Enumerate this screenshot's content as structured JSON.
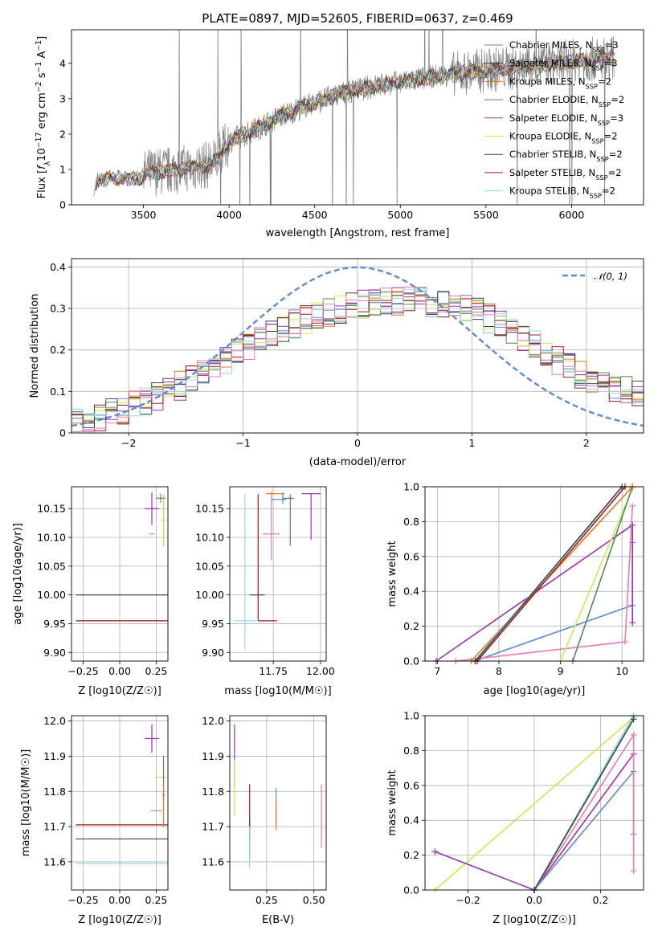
{
  "chart_data": [
    {
      "id": "spectrum",
      "type": "line",
      "title": "PLATE=0897, MJD=52605, FIBERID=0637, z=0.469",
      "xlabel": "wavelength [Angstrom, rest frame]",
      "ylabel": "Flux [f_λ 10^-17 erg cm^-2 s^-1 A^-1]",
      "xlim": [
        3080,
        6420
      ],
      "ylim": [
        0,
        4.95
      ],
      "xticks": [
        3500,
        4000,
        4500,
        5000,
        5500,
        6000
      ],
      "yticks": [
        0,
        1,
        2,
        3,
        4
      ],
      "data_color": "#808080",
      "data_trend": {
        "x": [
          3210,
          3230,
          3300,
          3480,
          3520,
          3700,
          3900,
          3960,
          4000,
          4100,
          4300,
          4500,
          4700,
          4900,
          5100,
          5300,
          5500,
          5700,
          5900,
          6100,
          6250
        ],
        "y": [
          0.3,
          0.7,
          0.75,
          0.75,
          0.9,
          1.0,
          1.15,
          1.5,
          1.8,
          2.0,
          2.5,
          2.9,
          3.2,
          3.4,
          3.55,
          3.7,
          3.8,
          3.9,
          4.0,
          4.1,
          4.15
        ]
      },
      "grid": false,
      "legend_position": "top-right",
      "series": [
        {
          "name": "Chabrier MILES, N_SSP=3",
          "color": "#5b8ad8"
        },
        {
          "name": "Salpeter MILES, N_SSP=3",
          "color": "#3a3a3a"
        },
        {
          "name": "Kroupa MILES, N_SSP=2",
          "color": "#e07b20"
        },
        {
          "name": "Chabrier ELODIE, N_SSP=2",
          "color": "#4f8a55"
        },
        {
          "name": "Salpeter ELODIE, N_SSP=3",
          "color": "#9b30b0"
        },
        {
          "name": "Kroupa ELODIE, N_SSP=2",
          "color": "#cde84c"
        },
        {
          "name": "Chabrier STELIB, N_SSP=2",
          "color": "#444444"
        },
        {
          "name": "Salpeter STELIB, N_SSP=2",
          "color": "#a01818"
        },
        {
          "name": "Kroupa STELIB, N_SSP=2",
          "color": "#88dde8"
        }
      ]
    },
    {
      "id": "residuals",
      "type": "line",
      "xlabel": "(data-model)/error",
      "ylabel": "Normed distribution",
      "xlim": [
        -2.5,
        2.5
      ],
      "ylim": [
        0,
        0.42
      ],
      "xticks": [
        -2,
        -1,
        0,
        1,
        2
      ],
      "yticks": [
        0.0,
        0.1,
        0.2,
        0.3,
        0.4
      ],
      "grid": true,
      "legend": "𝒩(0, 1)",
      "legend_position": "top-right",
      "reference_curve": {
        "name": "N(0,1)",
        "mu": 0,
        "sigma": 1,
        "color": "#5b8ad8"
      },
      "histogram_bin_width": 0.1,
      "histogram_envelope": {
        "x": [
          -2.5,
          -2.0,
          -1.5,
          -1.0,
          -0.5,
          0.0,
          0.5,
          1.0,
          1.5,
          2.0,
          2.5
        ],
        "y": [
          0.02,
          0.06,
          0.12,
          0.2,
          0.27,
          0.31,
          0.32,
          0.3,
          0.22,
          0.13,
          0.09
        ]
      },
      "histogram_colors": [
        "#5b8ad8",
        "#3a3a3a",
        "#e07b20",
        "#4f8a55",
        "#9b30b0",
        "#cde84c",
        "#444444",
        "#a01818",
        "#88dde8",
        "#e87ab0"
      ]
    },
    {
      "id": "age_vs_Z",
      "type": "scatter",
      "xlabel": "Z [log10(Z/Z☉)]",
      "ylabel": "age  [log10(age/yr)]",
      "xlim": [
        -0.33,
        0.33
      ],
      "ylim": [
        9.885,
        10.188
      ],
      "xticks": [
        -0.25,
        0.0,
        0.25
      ],
      "xtick_labels": [
        "−0.25",
        "0.00",
        "0.25"
      ],
      "yticks": [
        9.9,
        9.95,
        10.0,
        10.05,
        10.1,
        10.15
      ],
      "ytick_labels": [
        "9.90",
        "9.95",
        "10.00",
        "10.05",
        "10.10",
        "10.15"
      ],
      "grid": true,
      "points": [
        {
          "x": 0.3,
          "y": 10.0,
          "xerr": 0.6,
          "yerr": 0.0,
          "color": "#444444"
        },
        {
          "x": 0.3,
          "y": 9.955,
          "xerr": 0.6,
          "yerr": 0.0,
          "color": "#88dde8"
        },
        {
          "x": 0.3,
          "y": 9.955,
          "xerr": 0.6,
          "yerr": 0.0,
          "color": "#a01818"
        },
        {
          "x": 0.3,
          "y": 10.13,
          "xerr": 0.0,
          "yerr": 0.045,
          "color": "#4f8a55"
        },
        {
          "x": 0.3,
          "y": 10.13,
          "xerr": 0.02,
          "yerr": 0.045,
          "color": "#cde84c"
        },
        {
          "x": 0.22,
          "y": 10.15,
          "xerr": 0.05,
          "yerr": 0.028,
          "color": "#9b30b0"
        },
        {
          "x": 0.22,
          "y": 10.106,
          "xerr": 0.02,
          "yerr": 0.0,
          "color": "#e87ab0"
        },
        {
          "x": 0.28,
          "y": 10.168,
          "xerr": 0.03,
          "yerr": 0.008,
          "color": "#e07b20"
        },
        {
          "x": 0.28,
          "y": 10.168,
          "xerr": 0.03,
          "yerr": 0.004,
          "color": "#5b8ad8"
        }
      ]
    },
    {
      "id": "age_vs_mass",
      "type": "scatter",
      "xlabel": "mass [log10(M/M☉)]",
      "ylabel": "",
      "xlim": [
        11.52,
        12.03
      ],
      "ylim": [
        9.885,
        10.188
      ],
      "xticks": [
        11.75,
        12.0
      ],
      "xtick_labels": [
        "11.75",
        "12.00"
      ],
      "yticks": [
        9.9,
        9.95,
        10.0,
        10.05,
        10.1,
        10.15
      ],
      "ytick_labels": [
        "9.90",
        "9.95",
        "10.00",
        "10.05",
        "10.10",
        "10.15"
      ],
      "grid": true,
      "points": [
        {
          "x": 11.665,
          "y": 10.0,
          "xerr": 0.04,
          "yerr": 0.0,
          "color": "#444444"
        },
        {
          "x": 11.6,
          "y": 10.04,
          "xerr": 0.0,
          "yerr": 0.135,
          "color": "#88dde8"
        },
        {
          "x": 11.6,
          "y": 9.955,
          "xerr": 0.06,
          "yerr": 0.0,
          "color": "#88dde8"
        },
        {
          "x": 11.67,
          "y": 10.065,
          "xerr": 0.0,
          "yerr": 0.11,
          "color": "#a01818"
        },
        {
          "x": 11.72,
          "y": 9.955,
          "xerr": 0.05,
          "yerr": 0.0,
          "color": "#a01818"
        },
        {
          "x": 11.74,
          "y": 10.106,
          "xerr": 0.045,
          "yerr": 0.0,
          "color": "#e87ab0"
        },
        {
          "x": 11.74,
          "y": 10.12,
          "xerr": 0.0,
          "yerr": 0.06,
          "color": "#e87ab0"
        },
        {
          "x": 11.83,
          "y": 10.168,
          "xerr": 0.03,
          "yerr": 0.0,
          "color": "#4f8a55"
        },
        {
          "x": 11.84,
          "y": 10.13,
          "xerr": 0.0,
          "yerr": 0.045,
          "color": "#4f8a55"
        },
        {
          "x": 11.95,
          "y": 10.176,
          "xerr": 0.05,
          "yerr": 0.0,
          "color": "#9b30b0"
        },
        {
          "x": 11.95,
          "y": 10.136,
          "xerr": 0.0,
          "yerr": 0.04,
          "color": "#9b30b0"
        },
        {
          "x": 11.76,
          "y": 10.176,
          "xerr": 0.05,
          "yerr": 0.0,
          "color": "#e07b20"
        },
        {
          "x": 11.78,
          "y": 10.166,
          "xerr": 0.04,
          "yerr": 0.0,
          "color": "#5b8ad8"
        },
        {
          "x": 11.8,
          "y": 10.168,
          "xerr": 0.0,
          "yerr": 0.01,
          "color": "#5b8ad8"
        }
      ]
    },
    {
      "id": "weight_vs_age",
      "type": "line",
      "xlabel": "age  [log10(age/yr)]",
      "ylabel": "mass weight",
      "xlim": [
        6.8,
        10.35
      ],
      "ylim": [
        0,
        1.0
      ],
      "xticks": [
        7,
        8,
        9,
        10
      ],
      "yticks": [
        0.0,
        0.2,
        0.4,
        0.6,
        0.8,
        1.0
      ],
      "ytick_labels": [
        "0.0",
        "0.2",
        "0.4",
        "0.6",
        "0.8",
        "1.0"
      ],
      "grid": true,
      "series": [
        {
          "color": "#5b8ad8",
          "x": [
            7.6,
            10.17,
            10.17
          ],
          "y": [
            0.0,
            0.32,
            0.68
          ]
        },
        {
          "color": "#9b30b0",
          "x": [
            6.98,
            10.17,
            10.17
          ],
          "y": [
            0.0,
            0.78,
            0.22
          ]
        },
        {
          "color": "#e87ab0",
          "x": [
            7.3,
            10.05,
            10.17
          ],
          "y": [
            0.0,
            0.11,
            0.89
          ]
        },
        {
          "color": "#cde84c",
          "x": [
            9.0,
            10.17
          ],
          "y": [
            0.0,
            0.99
          ]
        },
        {
          "color": "#4f8a55",
          "x": [
            9.2,
            10.17
          ],
          "y": [
            0.0,
            1.0
          ]
        },
        {
          "color": "#e07b20",
          "x": [
            7.55,
            10.17
          ],
          "y": [
            0.0,
            1.0
          ]
        },
        {
          "color": "#88dde8",
          "x": [
            7.6,
            10.0
          ],
          "y": [
            0.0,
            1.0
          ]
        },
        {
          "color": "#444444",
          "x": [
            7.62,
            10.0
          ],
          "y": [
            0.0,
            1.0
          ]
        },
        {
          "color": "#a01818",
          "x": [
            7.65,
            10.05
          ],
          "y": [
            0.0,
            1.0
          ]
        }
      ]
    },
    {
      "id": "mass_vs_Z",
      "type": "scatter",
      "xlabel": "Z [log10(Z/Z☉)]",
      "ylabel": "mass [log10(M/M☉)]",
      "xlim": [
        -0.33,
        0.33
      ],
      "ylim": [
        11.52,
        12.015
      ],
      "xticks": [
        -0.25,
        0.0,
        0.25
      ],
      "xtick_labels": [
        "−0.25",
        "0.00",
        "0.25"
      ],
      "yticks": [
        11.6,
        11.7,
        11.8,
        11.9,
        12.0
      ],
      "ytick_labels": [
        "11.6",
        "11.7",
        "11.8",
        "11.9",
        "12.0"
      ],
      "grid": true,
      "points": [
        {
          "x": 0.3,
          "y": 11.705,
          "xerr": 0.6,
          "yerr": 0.0,
          "color": "#a01818"
        },
        {
          "x": 0.3,
          "y": 11.665,
          "xerr": 0.6,
          "yerr": 0.0,
          "color": "#444444"
        },
        {
          "x": 0.3,
          "y": 11.595,
          "xerr": 0.6,
          "yerr": 0.0,
          "color": "#88dde8"
        },
        {
          "x": 0.22,
          "y": 11.95,
          "xerr": 0.05,
          "yerr": 0.04,
          "color": "#9b30b0"
        },
        {
          "x": 0.28,
          "y": 11.84,
          "xerr": 0.04,
          "yerr": 0.0,
          "color": "#cde84c"
        },
        {
          "x": 0.3,
          "y": 11.84,
          "xerr": 0.0,
          "yerr": 0.06,
          "color": "#4f8a55"
        },
        {
          "x": 0.25,
          "y": 11.745,
          "xerr": 0.04,
          "yerr": 0.0,
          "color": "#e87ab0"
        },
        {
          "x": 0.3,
          "y": 11.79,
          "xerr": 0.01,
          "yerr": 0.015,
          "color": "#5b8ad8"
        },
        {
          "x": 0.3,
          "y": 11.76,
          "xerr": 0.0,
          "yerr": 0.06,
          "color": "#e07b20"
        }
      ]
    },
    {
      "id": "mass_vs_ebv",
      "type": "scatter",
      "xlabel": "E(B-V)",
      "ylabel": "",
      "xlim": [
        0.055,
        0.565
      ],
      "ylim": [
        11.52,
        12.015
      ],
      "xticks": [
        0.25,
        0.5
      ],
      "xtick_labels": [
        "0.25",
        "0.50"
      ],
      "yticks": [
        11.6,
        11.7,
        11.8,
        11.9,
        12.0
      ],
      "ytick_labels": [
        "11.6",
        "11.7",
        "11.8",
        "11.9",
        "12.0"
      ],
      "grid": true,
      "points": [
        {
          "x": 0.08,
          "y": 11.9,
          "yerr": 0.09,
          "color": "#9b30b0"
        },
        {
          "x": 0.08,
          "y": 11.81,
          "yerr": 0.08,
          "color": "#cde84c"
        },
        {
          "x": 0.16,
          "y": 11.74,
          "yerr": 0.08,
          "color": "#a01818"
        },
        {
          "x": 0.16,
          "y": 11.665,
          "yerr": 0.06,
          "color": "#444444"
        },
        {
          "x": 0.16,
          "y": 11.64,
          "yerr": 0.06,
          "color": "#88dde8"
        },
        {
          "x": 0.3,
          "y": 11.755,
          "yerr": 0.055,
          "color": "#5b8ad8"
        },
        {
          "x": 0.3,
          "y": 11.735,
          "yerr": 0.045,
          "color": "#e07b20"
        },
        {
          "x": 0.54,
          "y": 11.73,
          "yerr": 0.09,
          "color": "#e87ab0"
        }
      ]
    },
    {
      "id": "weight_vs_Z",
      "type": "line",
      "xlabel": "Z [log10(Z/Z☉)]",
      "ylabel": "mass weight",
      "xlim": [
        -0.33,
        0.33
      ],
      "ylim": [
        0,
        1.0
      ],
      "xticks": [
        -0.2,
        0.0,
        0.2
      ],
      "xtick_labels": [
        "−0.2",
        "0.0",
        "0.2"
      ],
      "yticks": [
        0.0,
        0.2,
        0.4,
        0.6,
        0.8,
        1.0
      ],
      "ytick_labels": [
        "0.0",
        "0.2",
        "0.4",
        "0.6",
        "0.8",
        "1.0"
      ],
      "grid": true,
      "series": [
        {
          "color": "#cde84c",
          "x": [
            -0.3,
            0.3
          ],
          "y": [
            0.0,
            0.99
          ]
        },
        {
          "color": "#9b30b0",
          "x": [
            -0.3,
            0.0,
            0.3
          ],
          "y": [
            0.22,
            0.0,
            0.78
          ]
        },
        {
          "color": "#5b8ad8",
          "x": [
            0.0,
            0.3,
            0.3
          ],
          "y": [
            0.0,
            0.68,
            0.32
          ]
        },
        {
          "color": "#e87ab0",
          "x": [
            0.0,
            0.3,
            0.3
          ],
          "y": [
            0.0,
            0.89,
            0.11
          ]
        },
        {
          "color": "#4f8a55",
          "x": [
            0.0,
            0.3
          ],
          "y": [
            0.0,
            1.0
          ]
        },
        {
          "color": "#88dde8",
          "x": [
            0.0,
            0.3
          ],
          "y": [
            0.0,
            1.0
          ]
        },
        {
          "color": "#444444",
          "x": [
            0.0,
            0.3
          ],
          "y": [
            0.0,
            0.98
          ]
        }
      ]
    }
  ]
}
